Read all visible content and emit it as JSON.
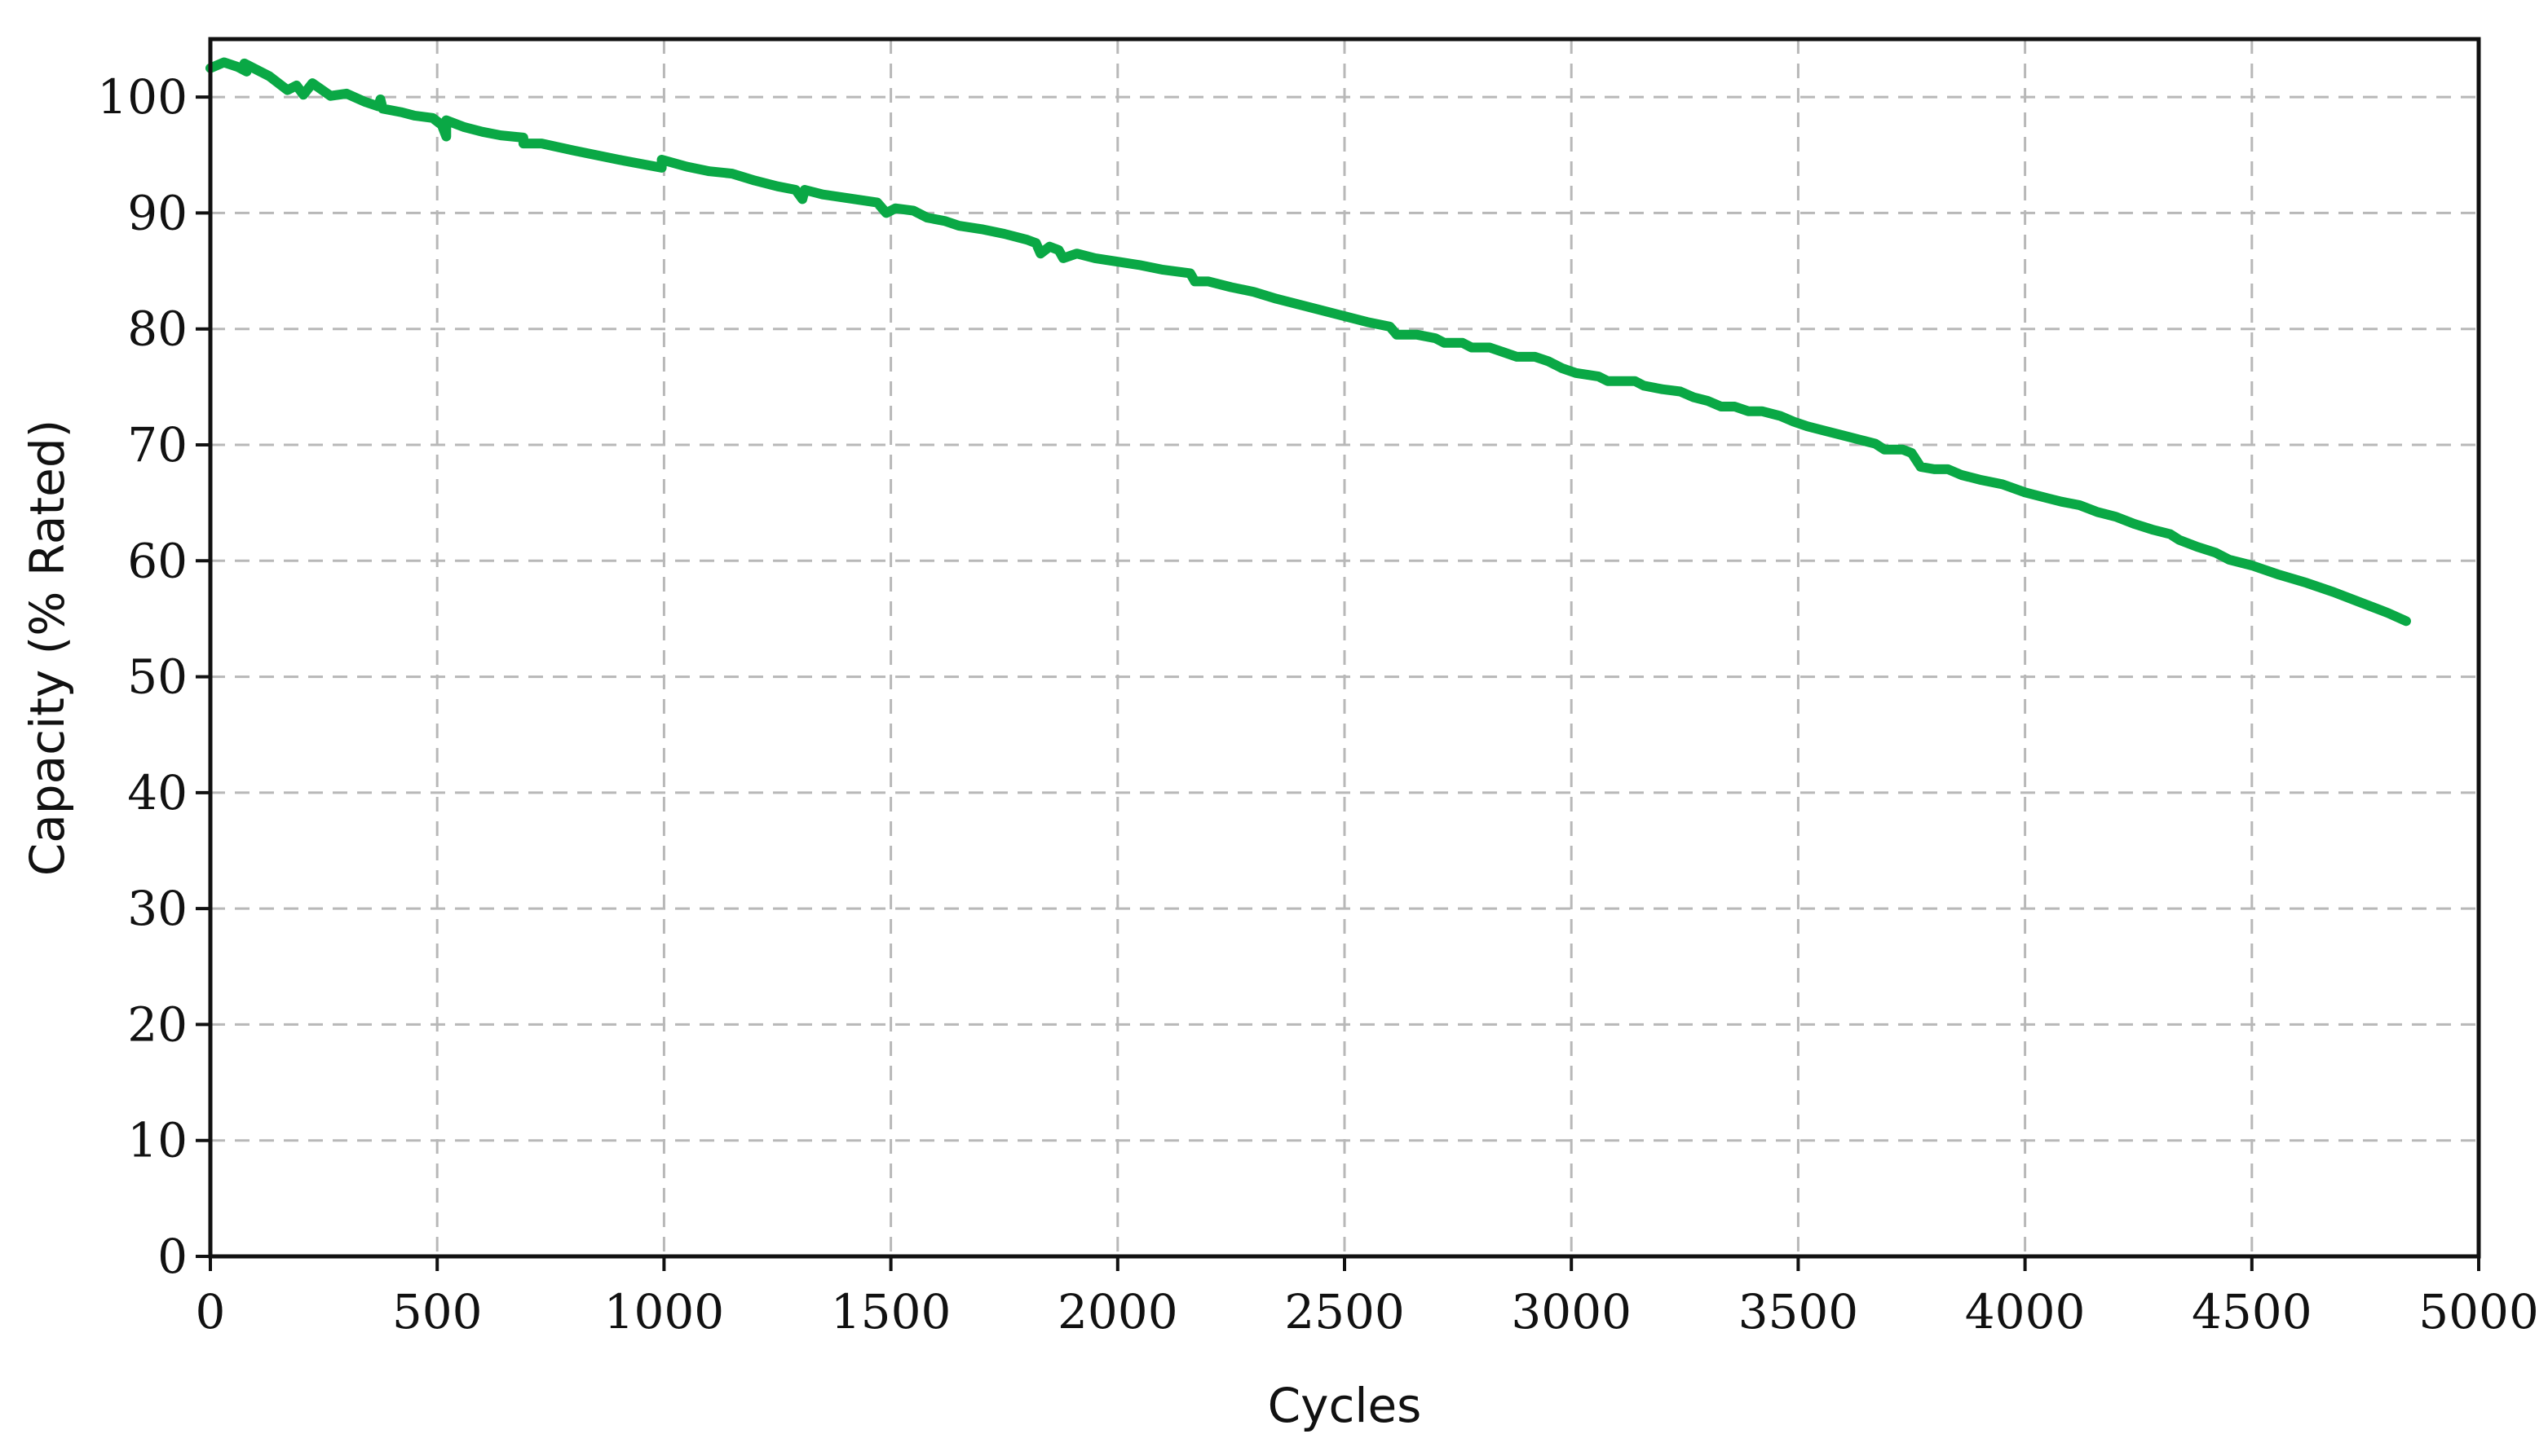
{
  "chart_data": {
    "type": "line",
    "title": "",
    "xlabel": "Cycles",
    "ylabel": "Capacity (% Rated)",
    "xlim": [
      0,
      5000
    ],
    "ylim": [
      0,
      105
    ],
    "x_ticks": [
      0,
      500,
      1000,
      1500,
      2000,
      2500,
      3000,
      3500,
      4000,
      4500,
      5000
    ],
    "y_ticks": [
      0,
      10,
      20,
      30,
      40,
      50,
      60,
      70,
      80,
      90,
      100
    ],
    "grid": true,
    "series": [
      {
        "name": "Capacity",
        "color": "#0aa845",
        "points": [
          [
            0,
            102.5
          ],
          [
            30,
            103
          ],
          [
            60,
            102.6
          ],
          [
            80,
            102.2
          ],
          [
            75,
            102.9
          ],
          [
            130,
            101.8
          ],
          [
            170,
            100.6
          ],
          [
            190,
            101
          ],
          [
            205,
            100.2
          ],
          [
            225,
            101.2
          ],
          [
            265,
            100.1
          ],
          [
            300,
            100.3
          ],
          [
            340,
            99.6
          ],
          [
            370,
            99.2
          ],
          [
            375,
            99.8
          ],
          [
            380,
            99
          ],
          [
            420,
            98.7
          ],
          [
            450,
            98.4
          ],
          [
            490,
            98.2
          ],
          [
            510,
            97.6
          ],
          [
            520,
            96.6
          ],
          [
            520,
            98
          ],
          [
            560,
            97.4
          ],
          [
            600,
            97
          ],
          [
            640,
            96.7
          ],
          [
            690,
            96.5
          ],
          [
            690,
            96
          ],
          [
            730,
            96
          ],
          [
            800,
            95.4
          ],
          [
            900,
            94.6
          ],
          [
            995,
            93.9
          ],
          [
            995,
            94.6
          ],
          [
            1050,
            94
          ],
          [
            1100,
            93.6
          ],
          [
            1150,
            93.4
          ],
          [
            1200,
            92.8
          ],
          [
            1250,
            92.3
          ],
          [
            1290,
            92.0
          ],
          [
            1305,
            91.2
          ],
          [
            1310,
            92
          ],
          [
            1350,
            91.6
          ],
          [
            1420,
            91.2
          ],
          [
            1470,
            90.9
          ],
          [
            1490,
            90
          ],
          [
            1510,
            90.4
          ],
          [
            1550,
            90.2
          ],
          [
            1580,
            89.6
          ],
          [
            1620,
            89.3
          ],
          [
            1650,
            88.9
          ],
          [
            1700,
            88.6
          ],
          [
            1750,
            88.2
          ],
          [
            1800,
            87.7
          ],
          [
            1820,
            87.4
          ],
          [
            1830,
            86.5
          ],
          [
            1850,
            87.1
          ],
          [
            1870,
            86.8
          ],
          [
            1880,
            86.1
          ],
          [
            1910,
            86.5
          ],
          [
            1950,
            86.1
          ],
          [
            2000,
            85.8
          ],
          [
            2050,
            85.5
          ],
          [
            2100,
            85.1
          ],
          [
            2160,
            84.8
          ],
          [
            2170,
            84.1
          ],
          [
            2200,
            84.1
          ],
          [
            2250,
            83.6
          ],
          [
            2300,
            83.2
          ],
          [
            2350,
            82.6
          ],
          [
            2400,
            82.1
          ],
          [
            2450,
            81.6
          ],
          [
            2500,
            81.1
          ],
          [
            2550,
            80.6
          ],
          [
            2600,
            80.2
          ],
          [
            2615,
            79.5
          ],
          [
            2660,
            79.5
          ],
          [
            2700,
            79.2
          ],
          [
            2720,
            78.8
          ],
          [
            2760,
            78.8
          ],
          [
            2780,
            78.4
          ],
          [
            2820,
            78.4
          ],
          [
            2850,
            78
          ],
          [
            2880,
            77.6
          ],
          [
            2920,
            77.6
          ],
          [
            2950,
            77.2
          ],
          [
            2980,
            76.6
          ],
          [
            3010,
            76.2
          ],
          [
            3060,
            75.9
          ],
          [
            3080,
            75.5
          ],
          [
            3140,
            75.5
          ],
          [
            3160,
            75.1
          ],
          [
            3200,
            74.8
          ],
          [
            3240,
            74.6
          ],
          [
            3270,
            74.1
          ],
          [
            3300,
            73.8
          ],
          [
            3330,
            73.3
          ],
          [
            3360,
            73.3
          ],
          [
            3390,
            72.9
          ],
          [
            3420,
            72.9
          ],
          [
            3460,
            72.5
          ],
          [
            3490,
            72
          ],
          [
            3520,
            71.6
          ],
          [
            3560,
            71.2
          ],
          [
            3600,
            70.8
          ],
          [
            3640,
            70.4
          ],
          [
            3670,
            70.1
          ],
          [
            3690,
            69.6
          ],
          [
            3730,
            69.6
          ],
          [
            3750,
            69.3
          ],
          [
            3770,
            68.1
          ],
          [
            3800,
            67.9
          ],
          [
            3830,
            67.9
          ],
          [
            3860,
            67.4
          ],
          [
            3900,
            67
          ],
          [
            3950,
            66.6
          ],
          [
            4000,
            65.9
          ],
          [
            4050,
            65.4
          ],
          [
            4080,
            65.1
          ],
          [
            4120,
            64.8
          ],
          [
            4160,
            64.2
          ],
          [
            4200,
            63.8
          ],
          [
            4240,
            63.2
          ],
          [
            4280,
            62.7
          ],
          [
            4320,
            62.3
          ],
          [
            4340,
            61.8
          ],
          [
            4380,
            61.2
          ],
          [
            4420,
            60.7
          ],
          [
            4450,
            60.1
          ],
          [
            4500,
            59.6
          ],
          [
            4560,
            58.8
          ],
          [
            4620,
            58.1
          ],
          [
            4680,
            57.3
          ],
          [
            4740,
            56.4
          ],
          [
            4800,
            55.5
          ],
          [
            4840,
            54.8
          ]
        ]
      }
    ]
  }
}
